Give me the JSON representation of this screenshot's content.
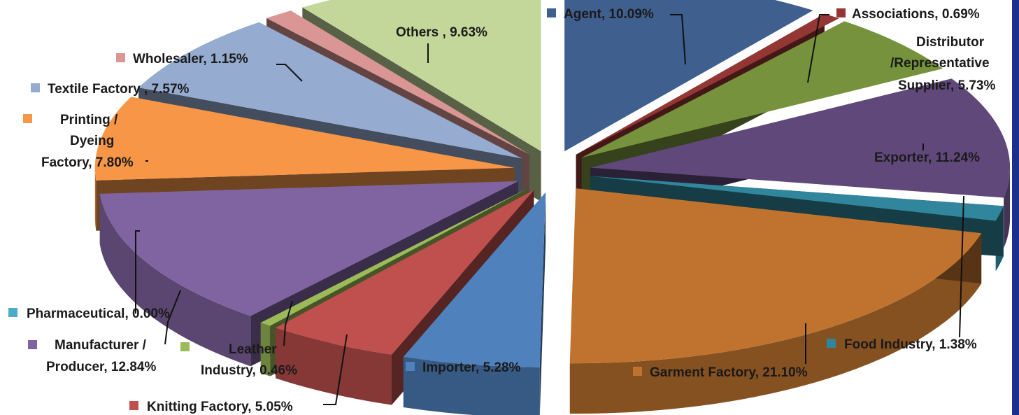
{
  "chart_data": {
    "type": "pie",
    "variant": "exploded-3d-pie",
    "title": "",
    "slices": [
      {
        "label": "Agent",
        "value": 10.09,
        "value_text": "10.09%",
        "color": "#3f5f8f"
      },
      {
        "label": "Associations",
        "value": 0.69,
        "value_text": "0.69%",
        "color": "#943634"
      },
      {
        "label": "Distributor /Representative Supplier",
        "label_lines": [
          "Distributor",
          "/Representative",
          "Supplier, 5.73%"
        ],
        "value": 5.73,
        "value_text": "5.73%",
        "color": "#76923c"
      },
      {
        "label": "Exporter",
        "value": 11.24,
        "value_text": "11.24%",
        "color": "#60497a"
      },
      {
        "label": "Food Industry",
        "value": 1.38,
        "value_text": "1.38%",
        "color": "#31859c"
      },
      {
        "label": "Garment Factory",
        "value": 21.1,
        "value_text": "21.10%",
        "color": "#c0732f"
      },
      {
        "label": "Importer",
        "value": 5.28,
        "value_text": "5.28%",
        "color": "#4f81bd"
      },
      {
        "label": "Knitting Factory",
        "value": 5.05,
        "value_text": "5.05%",
        "color": "#c0504d"
      },
      {
        "label": "Leather Industry",
        "label_lines": [
          "Leather",
          "Industry, 0.46%"
        ],
        "value": 0.46,
        "value_text": "0.46%",
        "color": "#9bbb59"
      },
      {
        "label": "Manufacturer / Producer",
        "label_lines": [
          "Manufacturer /",
          "Producer, 12.84%"
        ],
        "value": 12.84,
        "value_text": "12.84%",
        "color": "#8064a2"
      },
      {
        "label": "Pharmaceutical",
        "value": 0.0,
        "value_text": "0.00%",
        "color": "#4bacc6"
      },
      {
        "label": "Printing / Dyeing Factory",
        "label_lines": [
          "Printing /",
          "Dyeing",
          "Factory, 7.80%"
        ],
        "value": 7.8,
        "value_text": "7.80%",
        "color": "#f79646"
      },
      {
        "label": "Textile Factory",
        "value": 7.57,
        "value_text": "7.57%",
        "color": "#95abd0"
      },
      {
        "label": "Wholesaler",
        "value": 1.15,
        "value_text": "1.15%",
        "color": "#d99694"
      },
      {
        "label": "Others",
        "value": 9.63,
        "value_text": "9.63%",
        "color": "#c4d79b"
      }
    ]
  },
  "labels": {
    "agent": "Agent, 10.09%",
    "associations": "Associations, 0.69%",
    "distributor_1": "Distributor",
    "distributor_2": "/Representative",
    "distributor_3": "Supplier, 5.73%",
    "exporter": "Exporter, 11.24%",
    "food": "Food Industry, 1.38%",
    "garment": "Garment Factory, 21.10%",
    "importer": "Importer, 5.28%",
    "knitting": "Knitting Factory, 5.05%",
    "leather_1": "Leather",
    "leather_2": "Industry, 0.46%",
    "manufacturer_1": "Manufacturer /",
    "manufacturer_2": "Producer, 12.84%",
    "pharma": "Pharmaceutical, 0.00%",
    "printing_1": "Printing /",
    "printing_2": "Dyeing",
    "printing_3": "Factory, 7.80%",
    "textile": "Textile Factory , 7.57%",
    "wholesaler": "Wholesaler, 1.15%",
    "others": "Others , 9.63%"
  }
}
